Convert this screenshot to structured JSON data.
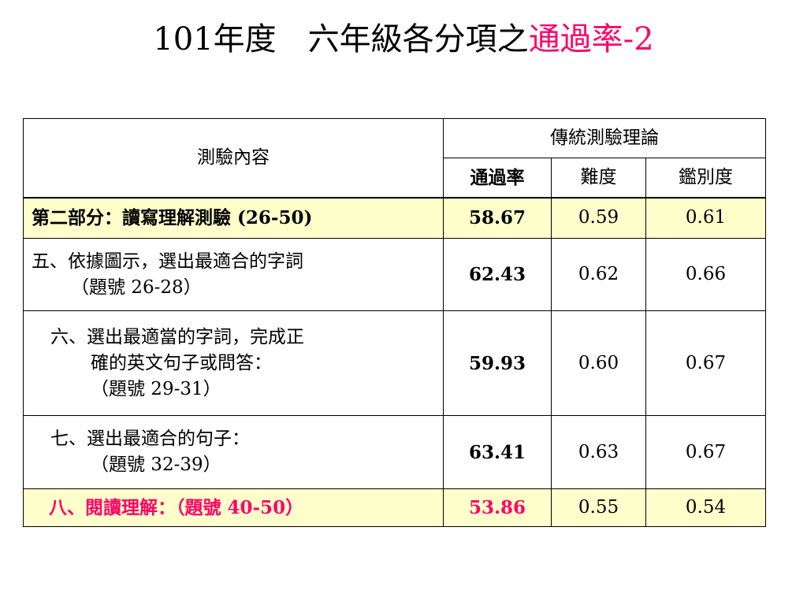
{
  "title": {
    "main": "101年度　六年級各分項之",
    "highlight": "通過率-2"
  },
  "table": {
    "header": {
      "content_label": "測驗內容",
      "group_label": "傳統測驗理論",
      "col_pass": "通過率",
      "col_difficulty": "難度",
      "col_discrimination": "鑑別度"
    },
    "rows": [
      {
        "lines": [
          "第二部分：讀寫理解測驗 (26-50)"
        ],
        "pass": "58.67",
        "difficulty": "0.59",
        "discrimination": "0.61"
      },
      {
        "lines": [
          "五、依據圖示，選出最適合的字詞",
          "（題號 26-28）"
        ],
        "pass": "62.43",
        "difficulty": "0.62",
        "discrimination": "0.66"
      },
      {
        "lines": [
          "六、選出最適當的字詞，完成正",
          "確的英文句子或問答：",
          "（題號 29-31）"
        ],
        "pass": "59.93",
        "difficulty": "0.60",
        "discrimination": "0.67"
      },
      {
        "lines": [
          "七、選出最適合的句子：",
          "（題號 32-39）"
        ],
        "pass": "63.41",
        "difficulty": "0.63",
        "discrimination": "0.67"
      },
      {
        "lines": [
          "八、閱讀理解：（題號 40-50）"
        ],
        "pass": "53.86",
        "difficulty": "0.55",
        "discrimination": "0.54"
      }
    ]
  }
}
